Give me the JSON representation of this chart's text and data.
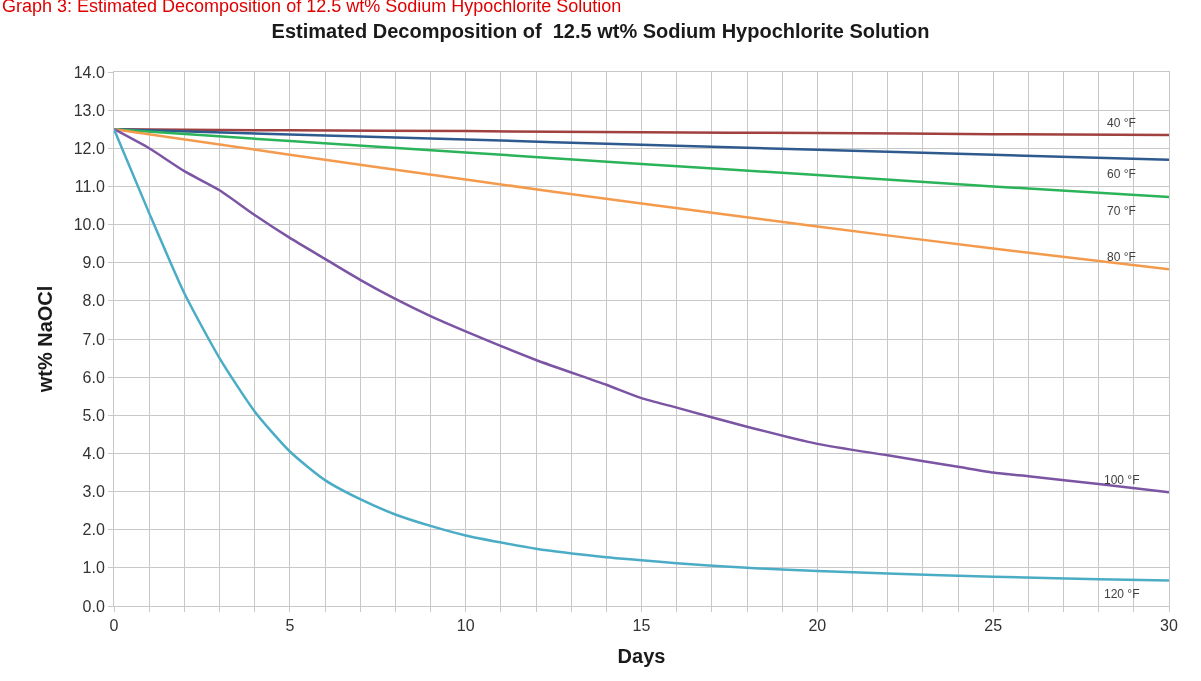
{
  "chart_data": {
    "type": "line",
    "title": "Estimated Decomposition of  12.5 wt% Sodium Hypochlorite Solution",
    "xlabel": "Days",
    "ylabel": "wt% NaOCl",
    "annotations": [
      "Graph 3: Estimated Decomposition of 12.5 wt% Sodium Hypochlorite Solution"
    ],
    "series": [
      {
        "name": "40 °F",
        "color": "#a0403f",
        "x": [
          0,
          5,
          10,
          15,
          20,
          25,
          30
        ],
        "values": [
          12.5,
          12.47,
          12.45,
          12.42,
          12.4,
          12.37,
          12.35
        ]
      },
      {
        "name": "60 °F",
        "color": "#2e5a8e",
        "x": [
          0,
          5,
          10,
          15,
          20,
          25,
          30
        ],
        "values": [
          12.5,
          12.36,
          12.23,
          12.09,
          11.96,
          11.83,
          11.7
        ]
      },
      {
        "name": "70 °F",
        "color": "#2bb35a",
        "x": [
          0,
          5,
          10,
          15,
          20,
          25,
          30
        ],
        "values": [
          12.5,
          12.19,
          11.89,
          11.59,
          11.3,
          11.0,
          10.72
        ]
      },
      {
        "name": "80 °F",
        "color": "#f39a4d",
        "x": [
          0,
          5,
          10,
          15,
          20,
          25,
          30
        ],
        "values": [
          12.5,
          11.83,
          11.18,
          10.55,
          9.95,
          9.37,
          8.83
        ]
      },
      {
        "name": "100 °F",
        "color": "#7b55a3",
        "x": [
          0,
          1,
          2,
          3,
          4,
          5,
          6,
          7,
          8,
          9,
          10,
          12,
          14,
          15,
          16,
          18,
          20,
          22,
          24,
          25,
          26,
          28,
          30
        ],
        "values": [
          12.5,
          12.0,
          11.4,
          10.9,
          10.25,
          9.65,
          9.1,
          8.55,
          8.05,
          7.6,
          7.2,
          6.45,
          5.8,
          5.45,
          5.2,
          4.7,
          4.25,
          3.95,
          3.65,
          3.5,
          3.4,
          3.2,
          2.98
        ]
      },
      {
        "name": "120 °F",
        "color": "#4bacc6",
        "x": [
          0,
          1,
          2,
          3,
          4,
          5,
          6,
          7,
          8,
          9,
          10,
          12,
          14,
          15,
          16,
          18,
          20,
          22,
          25,
          28,
          30
        ],
        "values": [
          12.5,
          10.3,
          8.2,
          6.5,
          5.1,
          4.05,
          3.3,
          2.8,
          2.4,
          2.1,
          1.85,
          1.5,
          1.28,
          1.2,
          1.12,
          1.0,
          0.92,
          0.85,
          0.77,
          0.7,
          0.67
        ]
      }
    ],
    "xlim": [
      0,
      30
    ],
    "xticks": [
      0,
      {
        "value": 1,
        "label": null
      },
      {
        "value": 2,
        "label": null
      },
      {
        "value": 3,
        "label": null
      },
      {
        "value": 4,
        "label": null
      },
      5,
      {
        "value": 6,
        "label": null
      },
      {
        "value": 7,
        "label": null
      },
      {
        "value": 8,
        "label": null
      },
      {
        "value": 9,
        "label": null
      },
      10,
      {
        "value": 11,
        "label": null
      },
      {
        "value": 12,
        "label": null
      },
      {
        "value": 13,
        "label": null
      },
      {
        "value": 14,
        "label": null
      },
      15,
      {
        "value": 16,
        "label": null
      },
      {
        "value": 17,
        "label": null
      },
      {
        "value": 18,
        "label": null
      },
      {
        "value": 19,
        "label": null
      },
      20,
      {
        "value": 21,
        "label": null
      },
      {
        "value": 22,
        "label": null
      },
      {
        "value": 23,
        "label": null
      },
      {
        "value": 24,
        "label": null
      },
      25,
      {
        "value": 26,
        "label": null
      },
      {
        "value": 27,
        "label": null
      },
      {
        "value": 28,
        "label": null
      },
      {
        "value": 29,
        "label": null
      },
      30
    ],
    "ylim": [
      0,
      14
    ],
    "yticks": [
      {
        "value": 0,
        "label": "0.0"
      },
      {
        "value": 1,
        "label": "1.0"
      },
      {
        "value": 2,
        "label": "2.0"
      },
      {
        "value": 3,
        "label": "3.0"
      },
      {
        "value": 4,
        "label": "4.0"
      },
      {
        "value": 5,
        "label": "5.0"
      },
      {
        "value": 6,
        "label": "6.0"
      },
      {
        "value": 7,
        "label": "7.0"
      },
      {
        "value": 8,
        "label": "8.0"
      },
      {
        "value": 9,
        "label": "9.0"
      },
      {
        "value": 10,
        "label": "10.0"
      },
      {
        "value": 11,
        "label": "11.0"
      },
      {
        "value": 12,
        "label": "12.0"
      },
      {
        "value": 13,
        "label": "13.0"
      },
      {
        "value": 14,
        "label": "14.0"
      }
    ],
    "grid": true,
    "marker": "none",
    "line_style": "solid"
  }
}
